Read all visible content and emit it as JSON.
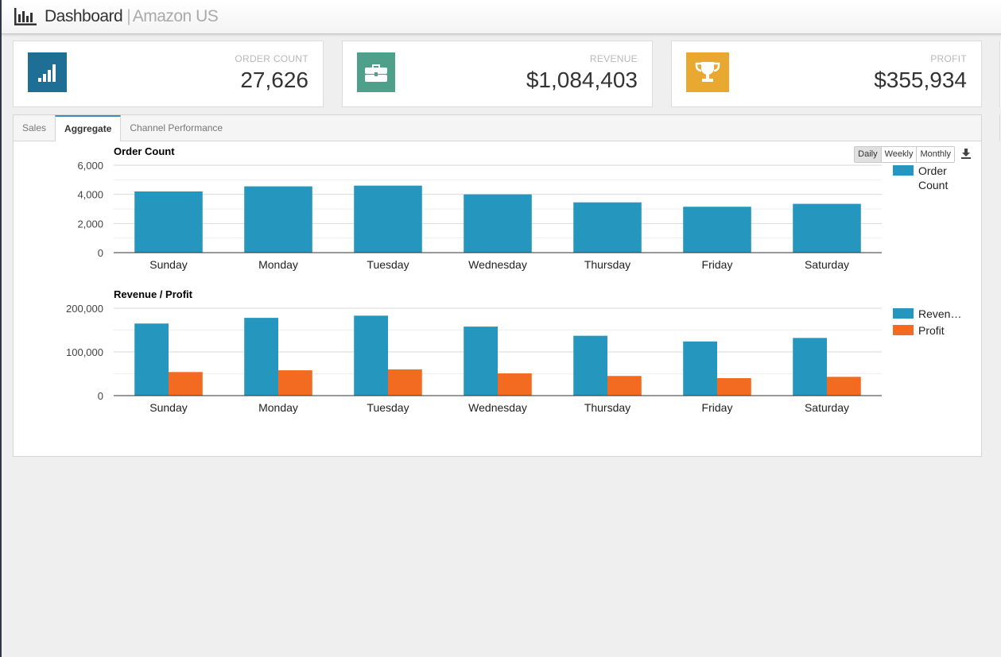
{
  "header": {
    "title": "Dashboard",
    "separator": "|",
    "subtitle": "Amazon US",
    "icon": "bar-chart-icon"
  },
  "kpis": [
    {
      "label": "ORDER COUNT",
      "value": "27,626",
      "icon": "signal-bars-icon",
      "color": "#1f6e96"
    },
    {
      "label": "REVENUE",
      "value": "$1,084,403",
      "icon": "briefcase-icon",
      "color": "#4fa08b"
    },
    {
      "label": "PROFIT",
      "value": "$355,934",
      "icon": "trophy-icon",
      "color": "#e9a82f"
    }
  ],
  "tabs": [
    {
      "label": "Sales",
      "active": false
    },
    {
      "label": "Aggregate",
      "active": true
    },
    {
      "label": "Channel Performance",
      "active": false
    }
  ],
  "period_buttons": [
    {
      "label": "Daily",
      "active": true
    },
    {
      "label": "Weekly",
      "active": false
    },
    {
      "label": "Monthly",
      "active": false
    }
  ],
  "download_icon": "download-icon",
  "colors": {
    "blue": "#2596be",
    "orange": "#f26b21"
  },
  "chart_data": [
    {
      "type": "bar",
      "title": "Order Count",
      "categories": [
        "Sunday",
        "Monday",
        "Tuesday",
        "Wednesday",
        "Thursday",
        "Friday",
        "Saturday"
      ],
      "series": [
        {
          "name": "Order Count",
          "values": [
            4200,
            4550,
            4600,
            4000,
            3450,
            3150,
            3350
          ]
        }
      ],
      "ylim": [
        0,
        6000
      ],
      "yticks": [
        "0",
        "2,000",
        "4,000",
        "6,000"
      ],
      "ytick_values": [
        0,
        2000,
        4000,
        6000
      ],
      "legend_placement": "right",
      "legend_labels": [
        "Order Count"
      ],
      "grid": true
    },
    {
      "type": "bar",
      "title": "Revenue / Profit",
      "categories": [
        "Sunday",
        "Monday",
        "Tuesday",
        "Wednesday",
        "Thursday",
        "Friday",
        "Saturday"
      ],
      "series": [
        {
          "name": "Revenue",
          "values": [
            165000,
            178000,
            183000,
            158000,
            137000,
            124000,
            132000
          ]
        },
        {
          "name": "Profit",
          "values": [
            54000,
            58000,
            60000,
            51000,
            45000,
            40000,
            43000
          ]
        }
      ],
      "ylim": [
        0,
        200000
      ],
      "yticks": [
        "0",
        "100,000",
        "200,000"
      ],
      "ytick_values": [
        0,
        100000,
        200000
      ],
      "legend_placement": "right",
      "legend_labels": [
        "Reven…",
        "Profit"
      ],
      "grid": true
    }
  ]
}
